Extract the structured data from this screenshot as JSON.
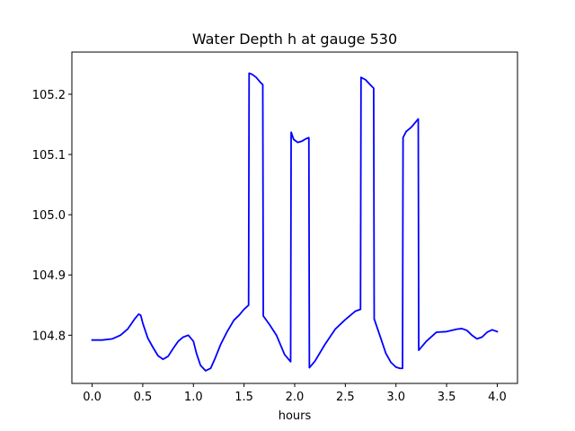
{
  "chart_data": {
    "type": "line",
    "title": "Water Depth h at gauge 530",
    "xlabel": "hours",
    "ylabel": "",
    "xlim": [
      -0.2,
      4.2
    ],
    "ylim": [
      104.72,
      105.27
    ],
    "xticks": [
      {
        "value": 0.0,
        "label": "0.0"
      },
      {
        "value": 0.5,
        "label": "0.5"
      },
      {
        "value": 1.0,
        "label": "1.0"
      },
      {
        "value": 1.5,
        "label": "1.5"
      },
      {
        "value": 2.0,
        "label": "2.0"
      },
      {
        "value": 2.5,
        "label": "2.5"
      },
      {
        "value": 3.0,
        "label": "3.0"
      },
      {
        "value": 3.5,
        "label": "3.5"
      },
      {
        "value": 4.0,
        "label": "4.0"
      }
    ],
    "yticks": [
      {
        "value": 104.8,
        "label": "104.8"
      },
      {
        "value": 104.9,
        "label": "104.9"
      },
      {
        "value": 105.0,
        "label": "105.0"
      },
      {
        "value": 105.1,
        "label": "105.1"
      },
      {
        "value": 105.2,
        "label": "105.2"
      }
    ],
    "grid": false,
    "series": [
      {
        "color": "#0000ff",
        "x": [
          0.0,
          0.1,
          0.2,
          0.28,
          0.35,
          0.42,
          0.46,
          0.48,
          0.5,
          0.55,
          0.6,
          0.65,
          0.7,
          0.75,
          0.8,
          0.85,
          0.9,
          0.95,
          1.0,
          1.03,
          1.07,
          1.12,
          1.17,
          1.21,
          1.27,
          1.33,
          1.4,
          1.45,
          1.5,
          1.545,
          1.55,
          1.58,
          1.62,
          1.66,
          1.685,
          1.69,
          1.75,
          1.82,
          1.9,
          1.96,
          1.965,
          1.99,
          2.03,
          2.07,
          2.11,
          2.14,
          2.145,
          2.2,
          2.3,
          2.4,
          2.5,
          2.6,
          2.65,
          2.655,
          2.7,
          2.75,
          2.78,
          2.785,
          2.85,
          2.9,
          2.95,
          3.0,
          3.04,
          3.065,
          3.07,
          3.1,
          3.15,
          3.2,
          3.22,
          3.225,
          3.3,
          3.4,
          3.5,
          3.6,
          3.65,
          3.7,
          3.75,
          3.8,
          3.85,
          3.9,
          3.95,
          4.0
        ],
        "y": [
          104.792,
          104.792,
          104.794,
          104.8,
          104.81,
          104.827,
          104.835,
          104.833,
          104.82,
          104.795,
          104.78,
          104.766,
          104.76,
          104.765,
          104.778,
          104.79,
          104.797,
          104.8,
          104.79,
          104.77,
          104.75,
          104.741,
          104.745,
          104.76,
          104.785,
          104.805,
          104.825,
          104.833,
          104.843,
          104.85,
          105.235,
          105.233,
          105.228,
          105.22,
          105.216,
          104.832,
          104.818,
          104.8,
          104.768,
          104.756,
          105.137,
          105.125,
          105.12,
          105.122,
          105.126,
          105.128,
          104.746,
          104.757,
          104.785,
          104.81,
          104.826,
          104.84,
          104.843,
          105.228,
          105.224,
          105.215,
          105.21,
          104.827,
          104.795,
          104.77,
          104.755,
          104.747,
          104.745,
          104.745,
          105.128,
          105.138,
          105.145,
          105.155,
          105.159,
          104.775,
          104.79,
          104.805,
          104.806,
          104.81,
          104.811,
          104.808,
          104.8,
          104.794,
          104.797,
          104.805,
          104.809,
          104.806
        ]
      }
    ]
  }
}
